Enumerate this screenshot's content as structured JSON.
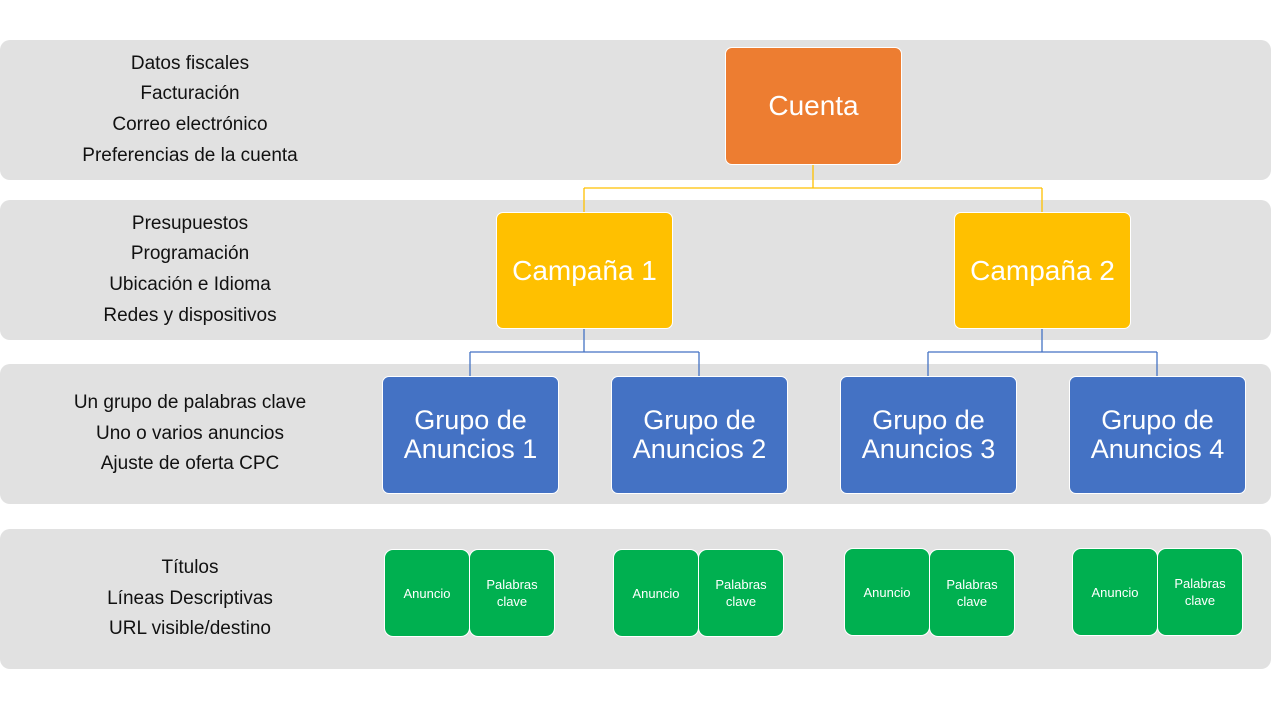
{
  "levels": [
    {
      "items": [
        "Datos fiscales",
        "Facturación",
        "Correo electrónico",
        "Preferencias de la cuenta"
      ]
    },
    {
      "items": [
        "Presupuestos",
        "Programación",
        "Ubicación  e Idioma",
        "Redes y dispositivos"
      ]
    },
    {
      "items": [
        "Un grupo  de palabras clave",
        "Uno o varios anuncios",
        "Ajuste  de oferta CPC"
      ]
    },
    {
      "items": [
        "Títulos",
        "Líneas Descriptivas",
        "URL visible/destino"
      ]
    }
  ],
  "account": {
    "label": "Cuenta"
  },
  "campaigns": [
    {
      "label": "Campaña 1"
    },
    {
      "label": "Campaña 2"
    }
  ],
  "ad_groups": [
    {
      "label": "Grupo de\nAnuncios 1"
    },
    {
      "label": "Grupo de\nAnuncios 2"
    },
    {
      "label": "Grupo de\nAnuncios 3"
    },
    {
      "label": "Grupo de\nAnuncios 4"
    }
  ],
  "leaves": {
    "ad": "Anuncio",
    "keywords": "Palabras\nclave"
  },
  "colors": {
    "band": "#e1e1e1",
    "account": "#ed7d31",
    "campaign": "#ffc000",
    "ad_group": "#4472c4",
    "leaf": "#00b050",
    "connector_account": "#ffc000",
    "connector_campaign": "#4472c4"
  }
}
